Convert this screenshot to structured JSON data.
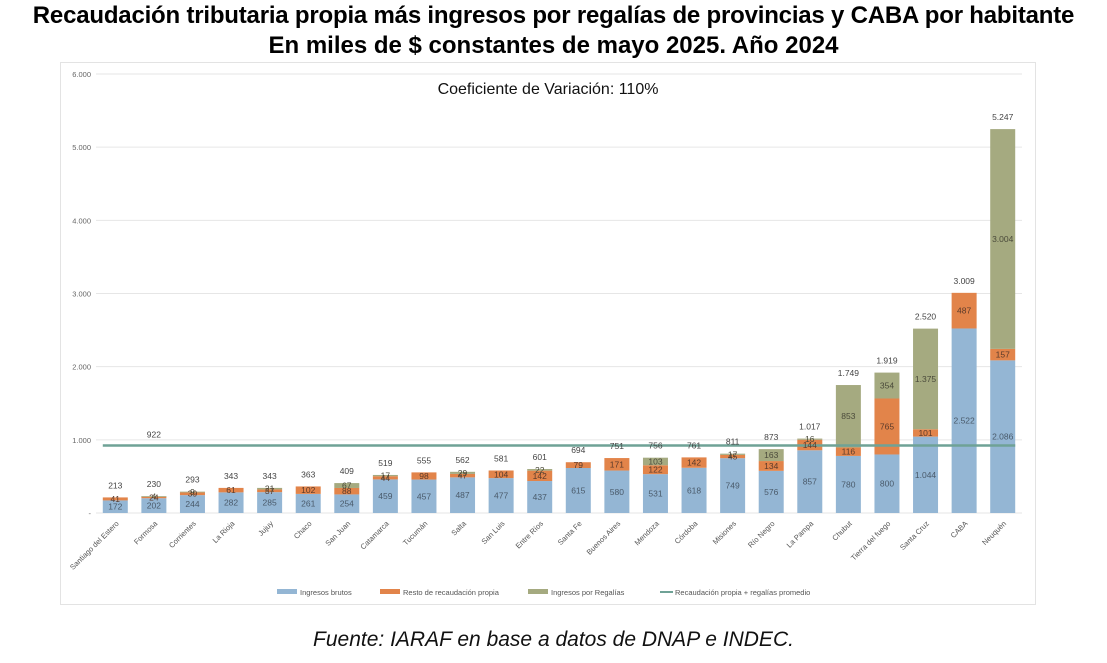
{
  "title": "Recaudación tributaria propia más ingresos por regalías de provincias y CABA por habitante",
  "subtitle": "En miles de $ constantes de mayo 2025. Año 2024",
  "source": "Fuente: IARAF en base a datos de DNAP e INDEC.",
  "chart_data": {
    "type": "bar",
    "stacked": true,
    "annotation": "Coeficiente de Variación: 110%",
    "xlabel": "",
    "ylabel": "",
    "ylim": [
      0,
      6000
    ],
    "yticks": [
      0,
      1000,
      2000,
      3000,
      4000,
      5000,
      6000
    ],
    "ytick_labels": [
      "-",
      "1.000",
      "2.000",
      "3.000",
      "4.000",
      "5.000",
      "6.000"
    ],
    "grid": true,
    "legend_position": "bottom",
    "categories": [
      "Santiago del Estero",
      "Formosa",
      "Corrientes",
      "La Rioja",
      "Jujuy",
      "Chaco",
      "San Juan",
      "Catamarca",
      "Tucumán",
      "Salta",
      "San Luis",
      "Entre Ríos",
      "Santa Fe",
      "Buenos Aires",
      "Mendoza",
      "Córdoba",
      "Misiones",
      "Río Negro",
      "La Pampa",
      "Chubut",
      "Tierra del fuego",
      "Santa Cruz",
      "CABA",
      "Neuquén"
    ],
    "series": [
      {
        "name": "Ingresos brutos",
        "color": "#94B6D4",
        "label_color": "#4a5a6a",
        "values": [
          172,
          202,
          244,
          282,
          285,
          261,
          254,
          459,
          457,
          487,
          477,
          437,
          615,
          580,
          531,
          618,
          749,
          576,
          857,
          780,
          800,
          1044,
          2522,
          2086
        ],
        "labels": [
          "172",
          "202",
          "244",
          "282",
          "285",
          "261",
          "254",
          "459",
          "457",
          "487",
          "477",
          "437",
          "615",
          "580",
          "531",
          "618",
          "749",
          "576",
          "857",
          "780",
          "800",
          "1.044",
          "2.522",
          "2.086"
        ]
      },
      {
        "name": "Resto de recaudación propia",
        "color": "#E2844A",
        "label_color": "#5a3a2a",
        "values": [
          41,
          24,
          39,
          61,
          37,
          102,
          88,
          44,
          98,
          47,
          104,
          142,
          79,
          171,
          122,
          142,
          45,
          134,
          144,
          116,
          765,
          101,
          487,
          157
        ],
        "labels": [
          "41",
          "24",
          "39",
          "61",
          "37",
          "102",
          "88",
          "44",
          "98",
          "47",
          "104",
          "142",
          "79",
          "171",
          "122",
          "142",
          "45",
          "134",
          "144",
          "116",
          "765",
          "101",
          "487",
          "157"
        ]
      },
      {
        "name": "Ingresos por Regalías",
        "color": "#A5AA80",
        "label_color": "#4a4a3a",
        "values": [
          0,
          4,
          9,
          0,
          21,
          0,
          67,
          17,
          0,
          29,
          0,
          22,
          0,
          0,
          103,
          0,
          17,
          163,
          16,
          853,
          354,
          1375,
          0,
          3004
        ],
        "labels": [
          "",
          "4",
          "9",
          "",
          "21",
          "",
          "67",
          "17",
          "",
          "29",
          "",
          "22",
          "",
          "",
          "103",
          "",
          "17",
          "163",
          "16",
          "853",
          "354",
          "1.375",
          "",
          "3.004"
        ]
      }
    ],
    "totals": [
      213,
      230,
      293,
      343,
      343,
      363,
      409,
      519,
      555,
      562,
      581,
      601,
      694,
      751,
      756,
      761,
      811,
      873,
      1017,
      1749,
      1919,
      2520,
      3009,
      5247
    ],
    "total_labels": [
      "213",
      "230",
      "293",
      "343",
      "343",
      "363",
      "409",
      "519",
      "555",
      "562",
      "581",
      "601",
      "694",
      "751",
      "756",
      "761",
      "811",
      "873",
      "1.017",
      "1.749",
      "1.919",
      "2.520",
      "3.009",
      "5.247"
    ],
    "line": {
      "name": "Recaudación propia + regalías promedio",
      "color": "#6FA296",
      "value": 922,
      "label": "922"
    },
    "legend": [
      {
        "label": "Ingresos brutos",
        "type": "bar",
        "color": "#94B6D4"
      },
      {
        "label": "Resto de recaudación propia",
        "type": "bar",
        "color": "#E2844A"
      },
      {
        "label": "Ingresos por Regalías",
        "type": "bar",
        "color": "#A5AA80"
      },
      {
        "label": "Recaudación propia + regalías promedio",
        "type": "line",
        "color": "#6FA296"
      }
    ]
  }
}
